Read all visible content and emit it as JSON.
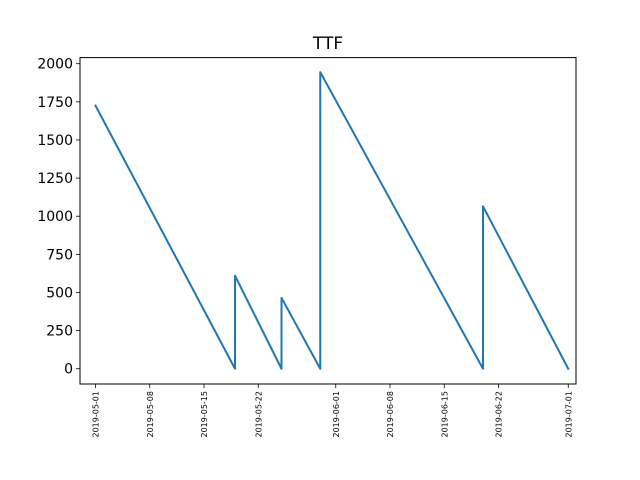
{
  "chart_data": {
    "type": "line",
    "title": "TTF",
    "xlabel": "",
    "ylabel": "",
    "x_type": "date",
    "xlim": [
      "2019-04-29",
      "2019-07-02"
    ],
    "ylim": [
      -100,
      2040
    ],
    "x_ticks": [
      "2019-05-01",
      "2019-05-08",
      "2019-05-15",
      "2019-05-22",
      "2019-06-01",
      "2019-06-08",
      "2019-06-15",
      "2019-06-22",
      "2019-07-01"
    ],
    "y_ticks": [
      0,
      250,
      500,
      750,
      1000,
      1250,
      1500,
      1750,
      2000
    ],
    "grid": false,
    "color": "#1f77b4",
    "series": [
      {
        "points": [
          [
            "2019-05-01",
            1725
          ],
          [
            "2019-05-19",
            0
          ],
          [
            "2019-05-19",
            610
          ],
          [
            "2019-05-25",
            0
          ],
          [
            "2019-05-25",
            465
          ],
          [
            "2019-05-30",
            0
          ],
          [
            "2019-05-30",
            1945
          ],
          [
            "2019-06-20",
            0
          ],
          [
            "2019-06-20",
            1065
          ],
          [
            "2019-07-01",
            0
          ]
        ]
      }
    ]
  }
}
